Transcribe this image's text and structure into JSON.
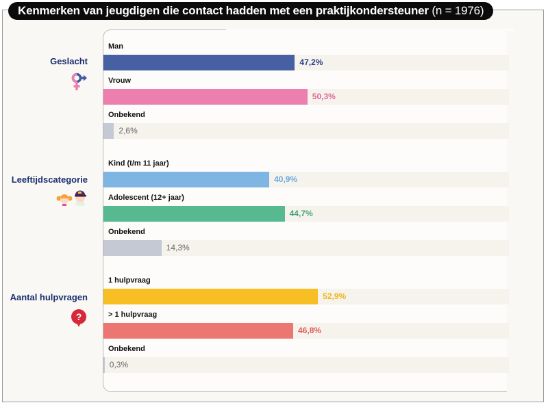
{
  "title": {
    "main": "Kenmerken van jeugdigen die contact hadden met een praktijkondersteuner",
    "n": "(n = 1976)"
  },
  "colors": {
    "group_label": "#1c2f6e",
    "track": "#f6f3ed",
    "unknown": "#c4c9d4"
  },
  "chart_data": {
    "type": "bar",
    "orientation": "horizontal",
    "title": "Kenmerken van jeugdigen die contact hadden met een praktijkondersteuner (n = 1976)",
    "xlim": [
      0,
      100
    ],
    "unit": "%",
    "grid": false,
    "groups": [
      {
        "label": "Geslacht",
        "icon": "gender-icon",
        "items": [
          {
            "label": "Man",
            "value": 47.2,
            "display": "47,2%",
            "color": "#4660a3",
            "text_color": "#2c3f86"
          },
          {
            "label": "Vrouw",
            "value": 50.3,
            "display": "50,3%",
            "color": "#ec7fae",
            "text_color": "#e0679d"
          },
          {
            "label": "Onbekend",
            "value": 2.6,
            "display": "2,6%",
            "color": "#c4c9d4",
            "text_color": "#666666"
          }
        ]
      },
      {
        "label": "Leeftijdscategorie",
        "icon": "children-icon",
        "items": [
          {
            "label": "Kind (t/m 11 jaar)",
            "value": 40.9,
            "display": "40,9%",
            "color": "#7fb5e3",
            "text_color": "#6aa8dd"
          },
          {
            "label": "Adolescent (12+ jaar)",
            "value": 44.7,
            "display": "44,7%",
            "color": "#56b990",
            "text_color": "#3fa57a"
          },
          {
            "label": "Onbekend",
            "value": 14.3,
            "display": "14,3%",
            "color": "#c4c9d4",
            "text_color": "#666666"
          }
        ]
      },
      {
        "label": "Aantal hulpvragen",
        "icon": "question-bubble-icon",
        "items": [
          {
            "label": "1 hulpvraag",
            "value": 52.9,
            "display": "52,9%",
            "color": "#f8bf24",
            "text_color": "#f2b515"
          },
          {
            "label": "> 1 hulpvraag",
            "value": 46.8,
            "display": "46,8%",
            "color": "#ec7671",
            "text_color": "#e05a56"
          },
          {
            "label": "Onbekend",
            "value": 0.3,
            "display": "0,3%",
            "color": "#c4c9d4",
            "text_color": "#666666"
          }
        ]
      }
    ]
  }
}
